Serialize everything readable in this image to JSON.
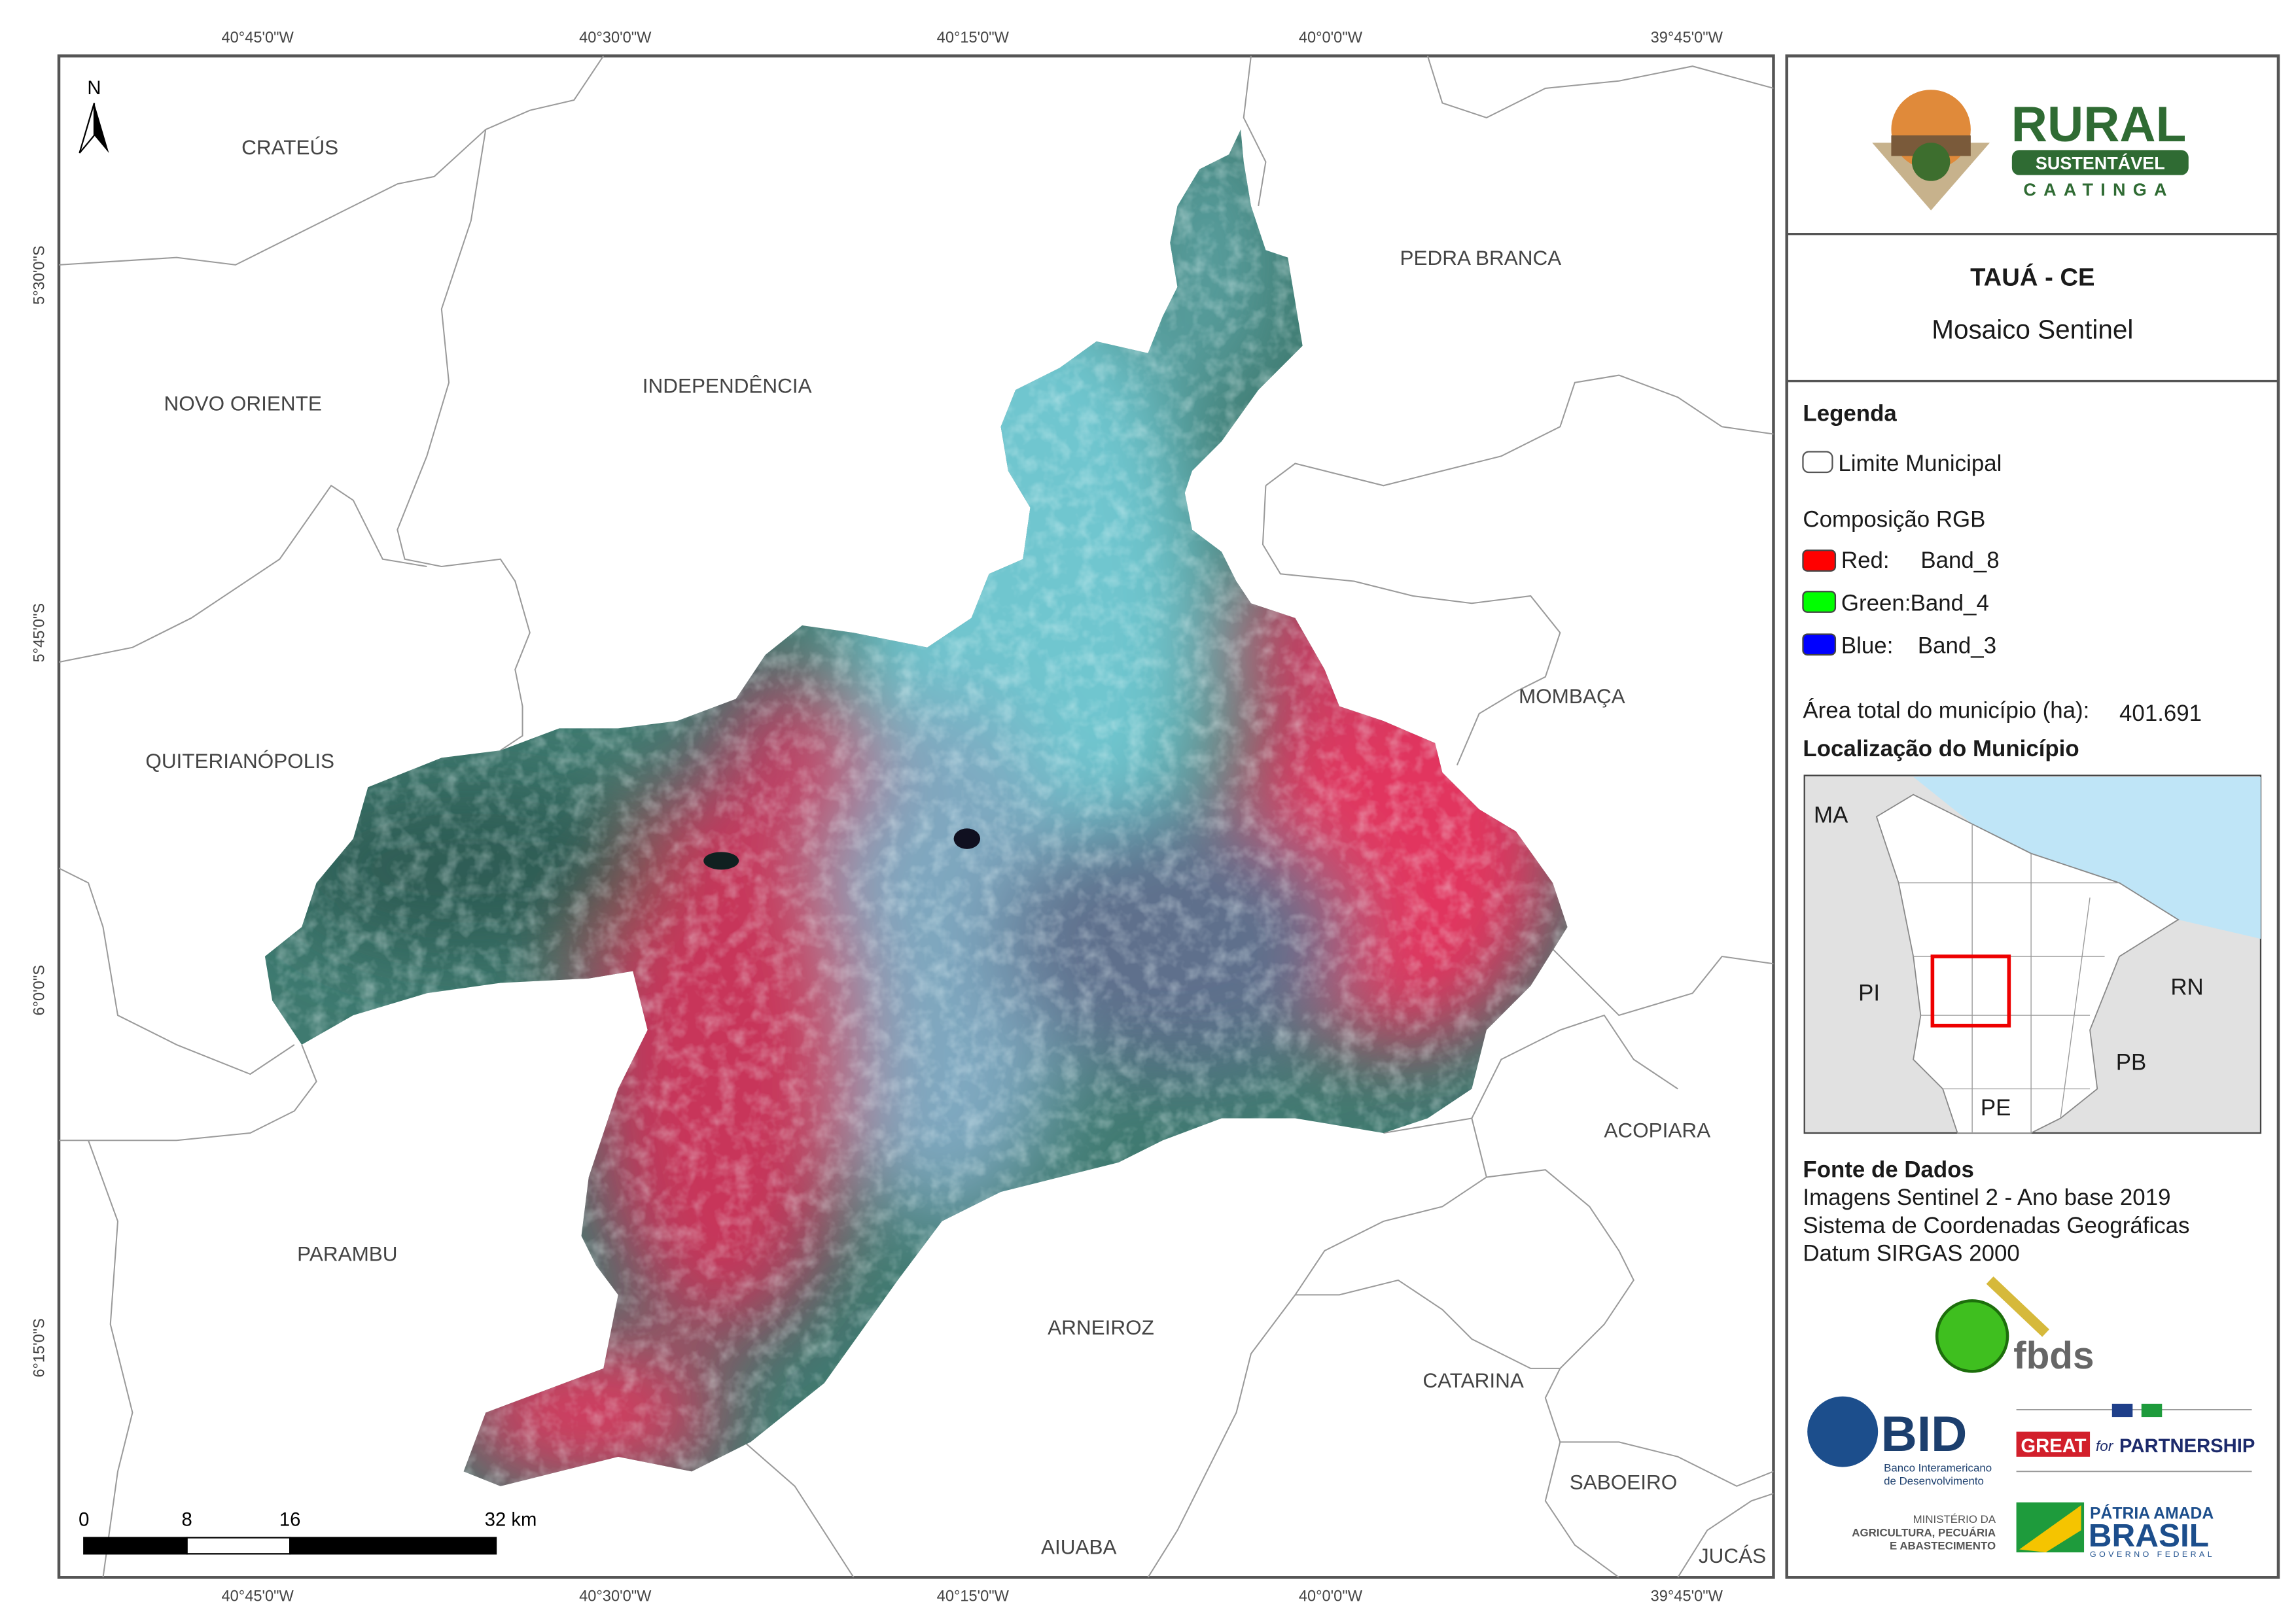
{
  "map": {
    "lon_ticks": [
      "40°45'0\"W",
      "40°30'0\"W",
      "40°15'0\"W",
      "40°0'0\"W",
      "39°45'0\"W"
    ],
    "lat_ticks": [
      "5°30'0\"S",
      "5°45'0\"S",
      "6°0'0\"S",
      "6°15'0\"S"
    ],
    "north": "N",
    "places": [
      "CRATEÚS",
      "NOVO ORIENTE",
      "INDEPENDÊNCIA",
      "PEDRA BRANCA",
      "QUITERIANÓPOLIS",
      "MOMBAÇA",
      "PARAMBU",
      "ACOPIARA",
      "ARNEIROZ",
      "CATARINA",
      "SABOEIRO",
      "AIUABA",
      "JUCÁS"
    ],
    "scale_bar": [
      "0",
      "8",
      "16",
      "32 km"
    ]
  },
  "panel": {
    "logo": {
      "name": "RURAL",
      "tagline": "SUSTENTÁVEL",
      "region": "CAATINGA"
    },
    "title": "TAUÁ - CE",
    "subtitle": "Mosaico Sentinel",
    "legend": {
      "title": "Legenda",
      "boundary": "Limite Municipal",
      "composition": "Composição RGB",
      "bands": [
        {
          "channel": "Red:",
          "band": "Band_8"
        },
        {
          "channel": "Green:",
          "band": "Band_4"
        },
        {
          "channel": "Blue:",
          "band": "Band_3"
        }
      ]
    },
    "area": {
      "label": "Área total do município (ha):",
      "value": "401.691"
    },
    "inset": {
      "title": "Localização do Município",
      "labels": [
        "MA",
        "PI",
        "RN",
        "PB",
        "PE"
      ]
    },
    "sources": {
      "title": "Fonte de Dados",
      "lines": [
        "Imagens Sentinel 2 - Ano base 2019",
        "Sistema de Coordenadas Geográficas",
        "Datum SIRGAS 2000"
      ]
    },
    "partners": {
      "fbds": "fbds",
      "bid": "BID",
      "bid_name": [
        "Banco Interamericano",
        "de Desenvolvimento"
      ],
      "great": "GREAT",
      "great_for": "for",
      "great_partnership": "PARTNERSHIP",
      "ministry": [
        "MINISTÉRIO DA",
        "AGRICULTURA, PECUÁRIA",
        "E ABASTECIMENTO"
      ],
      "brasil_motto": "PÁTRIA AMADA",
      "brasil": "BRASIL",
      "government": "GOVERNO FEDERAL"
    }
  }
}
